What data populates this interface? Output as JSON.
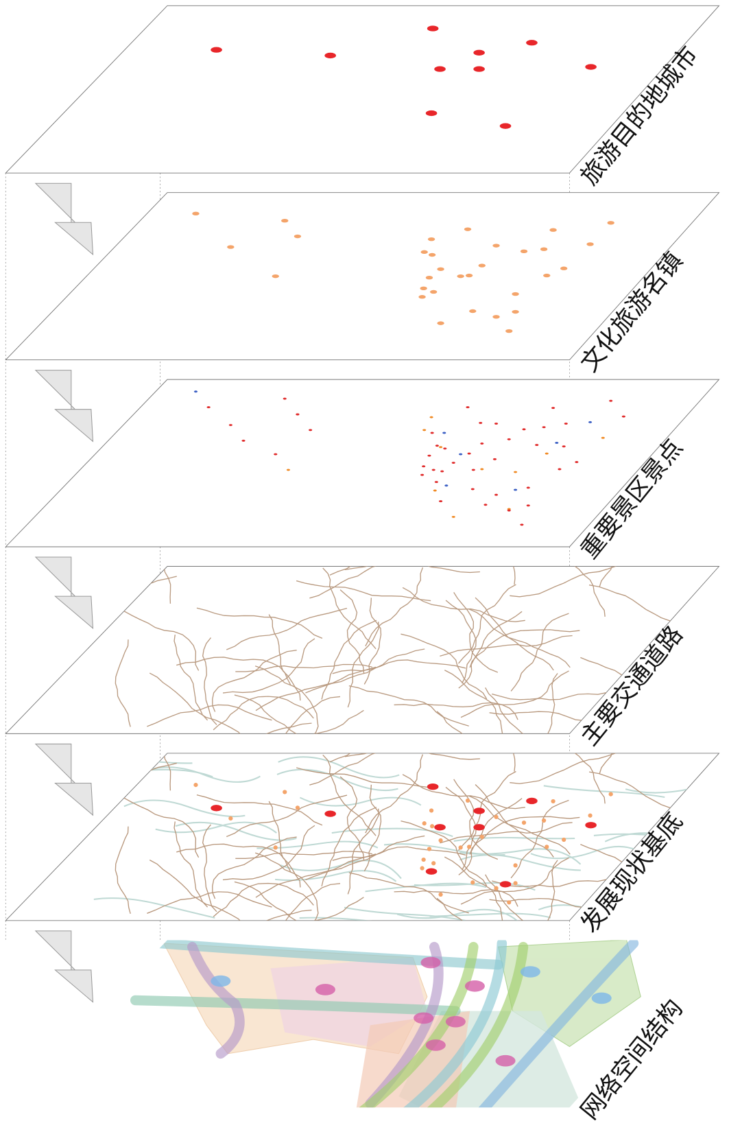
{
  "layers": [
    {
      "label": "旅游目的地城市"
    },
    {
      "label": "文化旅游名镇"
    },
    {
      "label": "重要景区景点"
    },
    {
      "label": "主要交通道路"
    },
    {
      "label": "发展现状基底"
    },
    {
      "label": "网络空间结构"
    }
  ]
}
